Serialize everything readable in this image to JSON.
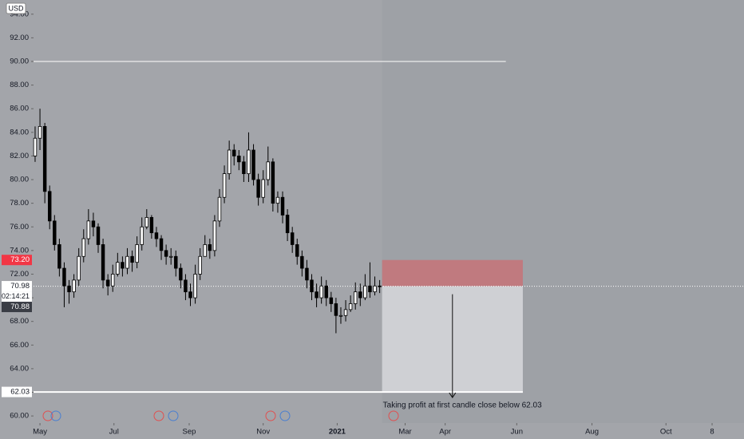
{
  "chart_data": {
    "type": "candlestick",
    "currency": "USD",
    "xlim": [
      -5.3,
      580.3
    ],
    "ylim": [
      59.4,
      95.2
    ],
    "xticks": [
      {
        "value": 0,
        "label": "May"
      },
      {
        "value": 61,
        "label": "Jul"
      },
      {
        "value": 123,
        "label": "Sep"
      },
      {
        "value": 184,
        "label": "Nov"
      },
      {
        "value": 245,
        "label": "2021"
      },
      {
        "value": 301,
        "label": "Mar"
      },
      {
        "value": 334,
        "label": "Apr"
      },
      {
        "value": 393,
        "label": "Jun"
      },
      {
        "value": 455,
        "label": "Aug"
      },
      {
        "value": 516,
        "label": "Oct"
      },
      {
        "value": 554,
        "label": "8"
      }
    ],
    "yticks": [
      {
        "value": 60,
        "label": "60.00"
      },
      {
        "value": 62,
        "label": "62.00"
      },
      {
        "value": 64,
        "label": "64.00"
      },
      {
        "value": 66,
        "label": "66.00"
      },
      {
        "value": 68,
        "label": "68.00"
      },
      {
        "value": 70,
        "label": "70.00"
      },
      {
        "value": 72,
        "label": "72.00"
      },
      {
        "value": 74,
        "label": "74.00"
      },
      {
        "value": 76,
        "label": "76.00"
      },
      {
        "value": 78,
        "label": "78.00"
      },
      {
        "value": 80,
        "label": "80.00"
      },
      {
        "value": 82,
        "label": "82.00"
      },
      {
        "value": 84,
        "label": "84.00"
      },
      {
        "value": 86,
        "label": "86.00"
      },
      {
        "value": 88,
        "label": "88.00"
      },
      {
        "value": 90,
        "label": "90.00"
      },
      {
        "value": 92,
        "label": "92.00"
      },
      {
        "value": 94,
        "label": "94.00"
      }
    ],
    "up_color": "#ffffff",
    "down_color": "#000000",
    "wick_color": "#000000",
    "x": [
      -4,
      0,
      4,
      8,
      12,
      16,
      20,
      24,
      28,
      32,
      36,
      40,
      44,
      48,
      52,
      56,
      60,
      64,
      68,
      72,
      76,
      80,
      84,
      88,
      92,
      96,
      100,
      104,
      108,
      112,
      116,
      120,
      124,
      128,
      132,
      136,
      140,
      144,
      148,
      152,
      156,
      160,
      164,
      168,
      172,
      176,
      180,
      184,
      188,
      192,
      196,
      200,
      204,
      208,
      212,
      216,
      220,
      224,
      228,
      232,
      236,
      240,
      244,
      248,
      252,
      256,
      260,
      264,
      268,
      272,
      276,
      280
    ],
    "open": [
      82,
      83.5,
      84.5,
      79,
      76.5,
      74.5,
      72.5,
      71,
      70.5,
      71.5,
      73.5,
      75,
      76.5,
      76,
      74.5,
      71.5,
      71,
      72,
      73,
      72.5,
      73.5,
      73,
      74.5,
      76,
      76.8,
      75.5,
      75,
      74,
      73.5,
      73.5,
      72.5,
      71.5,
      70.5,
      70,
      72,
      73.5,
      74.5,
      74,
      76.5,
      78.5,
      80.5,
      82.5,
      82,
      81.5,
      80.5,
      82.5,
      80,
      78.5,
      80,
      81.5,
      78,
      78.5,
      77,
      75.5,
      74.5,
      73.5,
      72.5,
      71.5,
      70.5,
      70,
      71,
      70,
      69.5,
      68.5,
      68.5,
      69,
      69.5,
      70.5,
      70,
      71,
      70.5,
      71
    ],
    "high": [
      84.5,
      86,
      84.8,
      79.5,
      77,
      75,
      73,
      71.5,
      72,
      74.2,
      75.8,
      77.5,
      77.2,
      76.3,
      75,
      72,
      72.8,
      73.8,
      73.5,
      74.2,
      74,
      75.2,
      76.8,
      77.5,
      77,
      76,
      75.3,
      74.5,
      74.2,
      74,
      72.9,
      72,
      71.2,
      72.8,
      74.2,
      75.3,
      75,
      77,
      79.2,
      81.2,
      83.3,
      83,
      82.5,
      82,
      84,
      83,
      80.5,
      80.8,
      82.8,
      81.8,
      79,
      79,
      77.5,
      76,
      75,
      74,
      73.2,
      72,
      71.2,
      71.8,
      71.5,
      70.5,
      70,
      69.2,
      69.8,
      70.2,
      71.3,
      71.2,
      72,
      73,
      71.8,
      71.5
    ],
    "low": [
      81.5,
      82.5,
      78,
      75.8,
      74,
      71.8,
      69.2,
      69.5,
      70,
      71,
      73,
      74.5,
      75.2,
      73.8,
      70.8,
      70.2,
      70.5,
      71.8,
      71.8,
      72,
      72.2,
      72.5,
      74,
      75.8,
      75,
      74.3,
      73.2,
      72.8,
      72.8,
      71.8,
      70.8,
      69.8,
      69.3,
      69.5,
      71.5,
      73.5,
      73.3,
      73.5,
      76,
      78,
      80,
      81.2,
      80.8,
      79.8,
      79.8,
      79.5,
      77.8,
      78,
      79.5,
      77.3,
      77.2,
      76.3,
      74.8,
      73.8,
      72.8,
      71.8,
      70.8,
      69.8,
      69.2,
      69.5,
      69.3,
      68.8,
      67,
      67.8,
      68,
      68.8,
      69,
      69.3,
      69.8,
      70,
      70.2,
      70.4
    ],
    "close": [
      83.5,
      84.5,
      79,
      76.5,
      74.5,
      72.5,
      71,
      70.5,
      71.5,
      73.5,
      75,
      76.5,
      76,
      74.5,
      71.5,
      71,
      72,
      73,
      72.5,
      73.5,
      73,
      74.5,
      76,
      76.8,
      75.5,
      75,
      74,
      73.5,
      73.5,
      72.5,
      71.5,
      70.5,
      70,
      72,
      73.5,
      74.5,
      74,
      76.5,
      78.5,
      80.5,
      82.5,
      82,
      81.5,
      80.5,
      82.5,
      80,
      78.5,
      80,
      81.5,
      78,
      78.5,
      77,
      75.5,
      74.5,
      73.5,
      72.5,
      71.5,
      70.5,
      70,
      71,
      70,
      69.5,
      68.5,
      68.5,
      69,
      69.5,
      70.5,
      70,
      71,
      70.5,
      71,
      70.98
    ],
    "horizontal_line": {
      "value": 90,
      "end_x": 384,
      "color": "#ffffff"
    },
    "position": {
      "start_x": 282,
      "end_x": 398,
      "entry": 70.98,
      "stop": 73.2,
      "target": 62.03,
      "stop_color": "#c07a7f",
      "target_color": "#cfd0d4"
    },
    "annotation": "Taking profit at first candle close below 62.03",
    "price_labels": {
      "stop": {
        "value": 73.2,
        "label": "73.20",
        "color": "#f23645"
      },
      "last": 70.98,
      "countdown": "02:14:21",
      "previous": 70.88,
      "target": 62.03
    }
  }
}
